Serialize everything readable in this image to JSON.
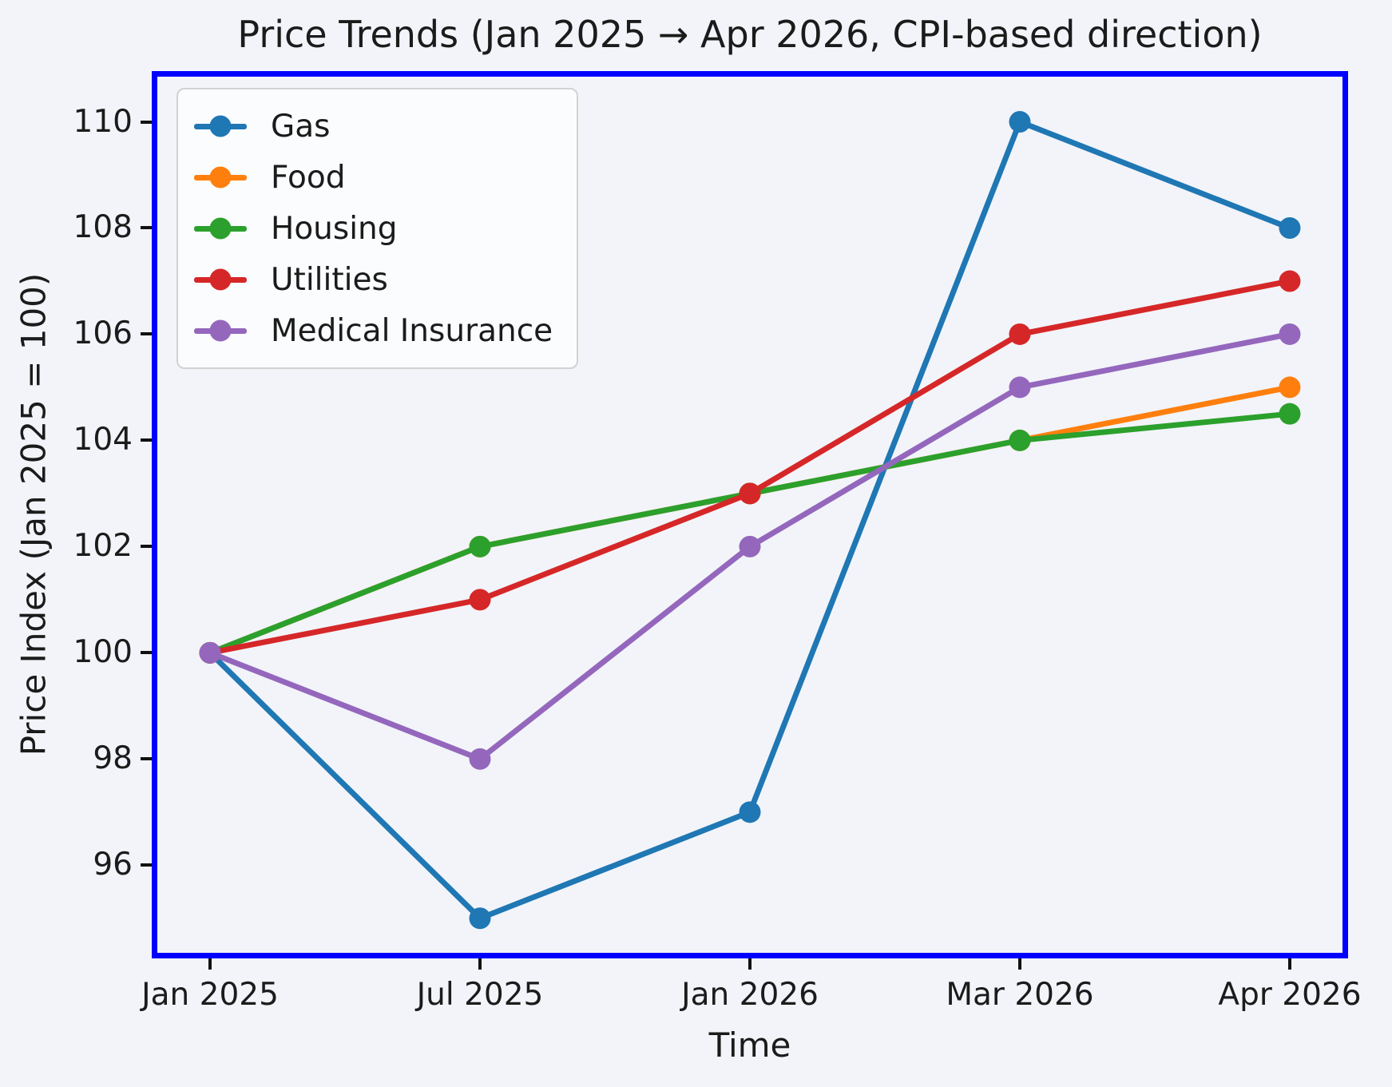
{
  "chart_data": {
    "type": "line",
    "title": "Price Trends (Jan 2025 → Apr 2026, CPI-based direction)",
    "xlabel": "Time",
    "ylabel": "Price Index (Jan 2025 = 100)",
    "categories": [
      "Jan 2025",
      "Jul 2025",
      "Jan 2026",
      "Mar 2026",
      "Apr 2026"
    ],
    "series": [
      {
        "name": "Gas",
        "color": "#1f77b4",
        "values": [
          100,
          95,
          97,
          110,
          108
        ]
      },
      {
        "name": "Food",
        "color": "#ff7f0e",
        "values": [
          100,
          102,
          103,
          104,
          105
        ]
      },
      {
        "name": "Housing",
        "color": "#2ca02c",
        "values": [
          100,
          102,
          103,
          104,
          104.5
        ]
      },
      {
        "name": "Utilities",
        "color": "#d62728",
        "values": [
          100,
          101,
          103,
          106,
          107
        ]
      },
      {
        "name": "Medical Insurance",
        "color": "#9467bd",
        "values": [
          100,
          98,
          102,
          105,
          106
        ]
      }
    ],
    "yticks": [
      96,
      98,
      100,
      102,
      104,
      106,
      108,
      110
    ],
    "ylim": [
      94.35,
      110.85
    ],
    "x_margin_frac": 0.0445,
    "legend_position": "upper left",
    "grid": false,
    "style": {
      "frame_color": "#0000ff",
      "background": "#f2f4f9",
      "text_color": "#1b1b1b",
      "line_width": 7,
      "marker_radius": 13.5
    }
  }
}
